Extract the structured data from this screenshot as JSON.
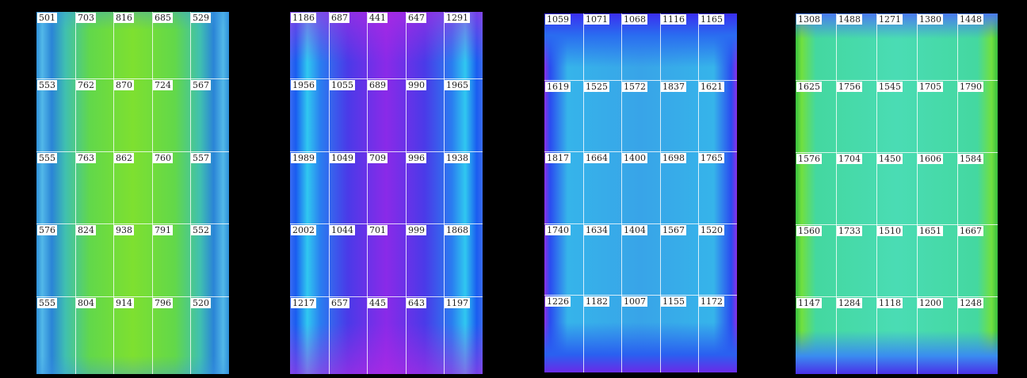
{
  "panels": [
    {
      "rows": [
        [
          501,
          703,
          816,
          685,
          529
        ],
        [
          553,
          762,
          870,
          724,
          567
        ],
        [
          555,
          763,
          862,
          760,
          557
        ],
        [
          576,
          824,
          938,
          791,
          552
        ],
        [
          555,
          804,
          914,
          796,
          520
        ]
      ]
    },
    {
      "rows": [
        [
          1186,
          687,
          441,
          647,
          1291
        ],
        [
          1956,
          1055,
          689,
          990,
          1965
        ],
        [
          1989,
          1049,
          709,
          996,
          1938
        ],
        [
          2002,
          1044,
          701,
          999,
          1868
        ],
        [
          1217,
          657,
          445,
          643,
          1197
        ]
      ]
    },
    {
      "rows": [
        [
          1059,
          1071,
          1068,
          1116,
          1165
        ],
        [
          1619,
          1525,
          1572,
          1837,
          1621
        ],
        [
          1817,
          1664,
          1400,
          1698,
          1765
        ],
        [
          1740,
          1634,
          1404,
          1567,
          1520
        ],
        [
          1226,
          1182,
          1007,
          1155,
          1172
        ]
      ]
    },
    {
      "rows": [
        [
          1308,
          1488,
          1271,
          1380,
          1448
        ],
        [
          1625,
          1756,
          1545,
          1705,
          1790
        ],
        [
          1576,
          1704,
          1450,
          1606,
          1584
        ],
        [
          1560,
          1733,
          1510,
          1651,
          1667
        ],
        [
          1147,
          1284,
          1118,
          1200,
          1248
        ]
      ]
    }
  ]
}
